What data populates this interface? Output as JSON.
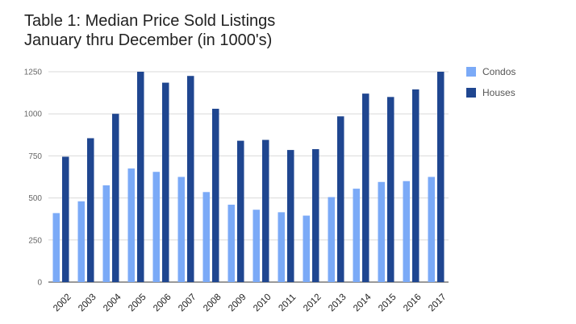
{
  "chart_data": {
    "type": "bar",
    "title_line1": "Table 1: Median Price Sold Listings",
    "title_line2": "January thru December (in 1000's)",
    "categories": [
      "2002",
      "2003",
      "2004",
      "2005",
      "2006",
      "2007",
      "2008",
      "2009",
      "2010",
      "2011",
      "2012",
      "2013",
      "2014",
      "2015",
      "2016",
      "2017"
    ],
    "series": [
      {
        "name": "Condos",
        "color": "#7baaf7",
        "values": [
          410,
          480,
          575,
          675,
          655,
          625,
          535,
          460,
          430,
          415,
          395,
          505,
          555,
          595,
          600,
          625
        ]
      },
      {
        "name": "Houses",
        "color": "#1f4690",
        "values": [
          745,
          855,
          1000,
          1250,
          1185,
          1225,
          1030,
          840,
          845,
          785,
          790,
          985,
          1120,
          1100,
          1145,
          1250
        ]
      }
    ],
    "yticks": [
      0,
      250,
      500,
      750,
      1000,
      1250
    ],
    "ylim": [
      0,
      1250
    ],
    "grid": true,
    "legend_position": "right"
  }
}
